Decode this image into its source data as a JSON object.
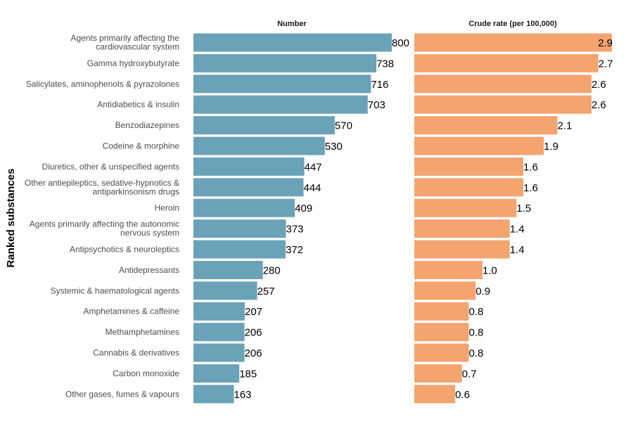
{
  "chart_data": {
    "type": "bar",
    "orientation": "horizontal",
    "ylabel": "Ranked substances",
    "categories": [
      "Agents primarily affecting the cardiovascular system",
      "Gamma hydroxybutyrate",
      "Salicylates, aminophenols & pyrazolones",
      "Antidiabetics & insulin",
      "Benzodiazepines",
      "Codeine & morphine",
      "Diuretics, other & unspecified agents",
      "Other antiepileptics, sedative-hypnotics & antiparkinsonism drugs",
      "Heroin",
      "Agents primarily affecting the autonomic nervous system",
      "Antipsychotics & neuroleptics",
      "Antidepressants",
      "Systemic & haematological agents",
      "Amphetamines & caffeine",
      "Methamphetamines",
      "Cannabis & derivatives",
      "Carbon monoxide",
      "Other gases, fumes & vapours"
    ],
    "category_lines": [
      [
        "Agents primarily affecting the",
        "cardiovascular system"
      ],
      [
        "Gamma hydroxybutyrate"
      ],
      [
        "Salicylates, aminophenols & pyrazolones"
      ],
      [
        "Antidiabetics & insulin"
      ],
      [
        "Benzodiazepines"
      ],
      [
        "Codeine & morphine"
      ],
      [
        "Diuretics, other & unspecified agents"
      ],
      [
        "Other antiepileptics, sedative-hypnotics &",
        "antiparkinsonism drugs"
      ],
      [
        "Heroin"
      ],
      [
        "Agents primarily affecting the autonomic",
        "nervous system"
      ],
      [
        "Antipsychotics & neuroleptics"
      ],
      [
        "Antidepressants"
      ],
      [
        "Systemic & haematological agents"
      ],
      [
        "Amphetamines & caffeine"
      ],
      [
        "Methamphetamines"
      ],
      [
        "Cannabis & derivatives"
      ],
      [
        "Carbon monoxide"
      ],
      [
        "Other gases, fumes & vapours"
      ]
    ],
    "series": [
      {
        "name": "Number",
        "color": "#6aa2b8",
        "xlim": [
          0,
          800
        ],
        "values": [
          800,
          738,
          716,
          703,
          570,
          530,
          447,
          444,
          409,
          373,
          372,
          280,
          257,
          207,
          206,
          206,
          185,
          163
        ],
        "labels": [
          "800",
          "738",
          "716",
          "703",
          "570",
          "530",
          "447",
          "444",
          "409",
          "373",
          "372",
          "280",
          "257",
          "207",
          "206",
          "206",
          "185",
          "163"
        ]
      },
      {
        "name": "Crude rate (per 100,000)",
        "color": "#f4a46f",
        "xlim": [
          0,
          2.9
        ],
        "values": [
          2.9,
          2.7,
          2.6,
          2.6,
          2.1,
          1.9,
          1.6,
          1.6,
          1.5,
          1.4,
          1.4,
          1.0,
          0.9,
          0.8,
          0.8,
          0.8,
          0.7,
          0.6
        ],
        "labels": [
          "2.9",
          "2.7",
          "2.6",
          "2.6",
          "2.1",
          "1.9",
          "1.6",
          "1.6",
          "1.5",
          "1.4",
          "1.4",
          "1.0",
          "0.9",
          "0.8",
          "0.8",
          "0.8",
          "0.7",
          "0.6"
        ]
      }
    ],
    "grid": false,
    "legend": "none"
  }
}
